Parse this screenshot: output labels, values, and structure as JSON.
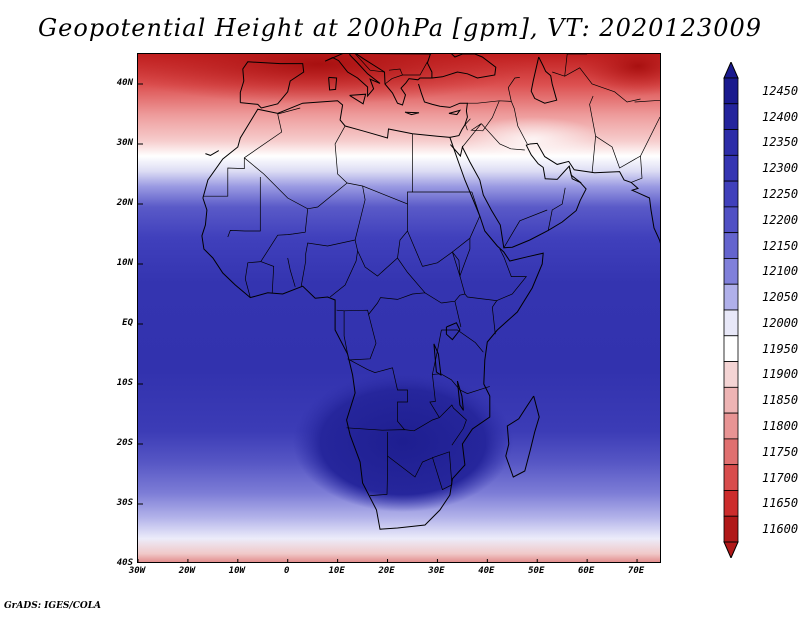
{
  "title": "Geopotential Height at 200hPa [gpm], VT: 2020123009",
  "credit": "GrADS: IGES/COLA",
  "map": {
    "lat_labels": [
      "40N",
      "30N",
      "20N",
      "10N",
      "EQ",
      "10S",
      "20S",
      "30S",
      "40S"
    ],
    "lon_labels": [
      "30W",
      "20W",
      "10W",
      "0",
      "10E",
      "20E",
      "30E",
      "40E",
      "50E",
      "60E",
      "70E"
    ],
    "lat_range": [
      -40,
      45
    ],
    "lon_range": [
      -30,
      75
    ]
  },
  "colorbar": {
    "levels": [
      "12450",
      "12400",
      "12350",
      "12300",
      "12250",
      "12200",
      "12150",
      "12100",
      "12050",
      "12000",
      "11950",
      "11900",
      "11850",
      "11800",
      "11750",
      "11700",
      "11650",
      "11600"
    ],
    "colors": [
      "#1a1a8e",
      "#24249c",
      "#2d2da8",
      "#3535b2",
      "#4040bb",
      "#5050c4",
      "#6464ce",
      "#8080da",
      "#b0b0ea",
      "#e8e8f8",
      "#ffffff",
      "#f4d4d4",
      "#eeb4b4",
      "#e89494",
      "#e07070",
      "#d84c4c",
      "#cc2c2c",
      "#b01818"
    ]
  }
}
